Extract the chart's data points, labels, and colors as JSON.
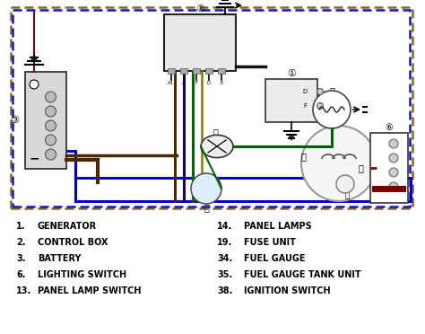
{
  "bg_color": "#ffffff",
  "text_color": "#000000",
  "legend_left": [
    [
      "1.",
      "GENERATOR"
    ],
    [
      "2.",
      "CONTROL BOX"
    ],
    [
      "3.",
      "BATTERY"
    ],
    [
      "6.",
      "LIGHTING SWITCH"
    ],
    [
      "13.",
      "PANEL LAMP SWITCH"
    ]
  ],
  "legend_right": [
    [
      "14.",
      "PANEL LAMPS"
    ],
    [
      "19.",
      "FUSE UNIT"
    ],
    [
      "34.",
      "FUEL GAUGE"
    ],
    [
      "35.",
      "FUEL GAUGE TANK UNIT"
    ],
    [
      "38.",
      "IGNITION SWITCH"
    ]
  ],
  "font_size": 7.0,
  "diagram_border": [
    12,
    8,
    460,
    232
  ]
}
